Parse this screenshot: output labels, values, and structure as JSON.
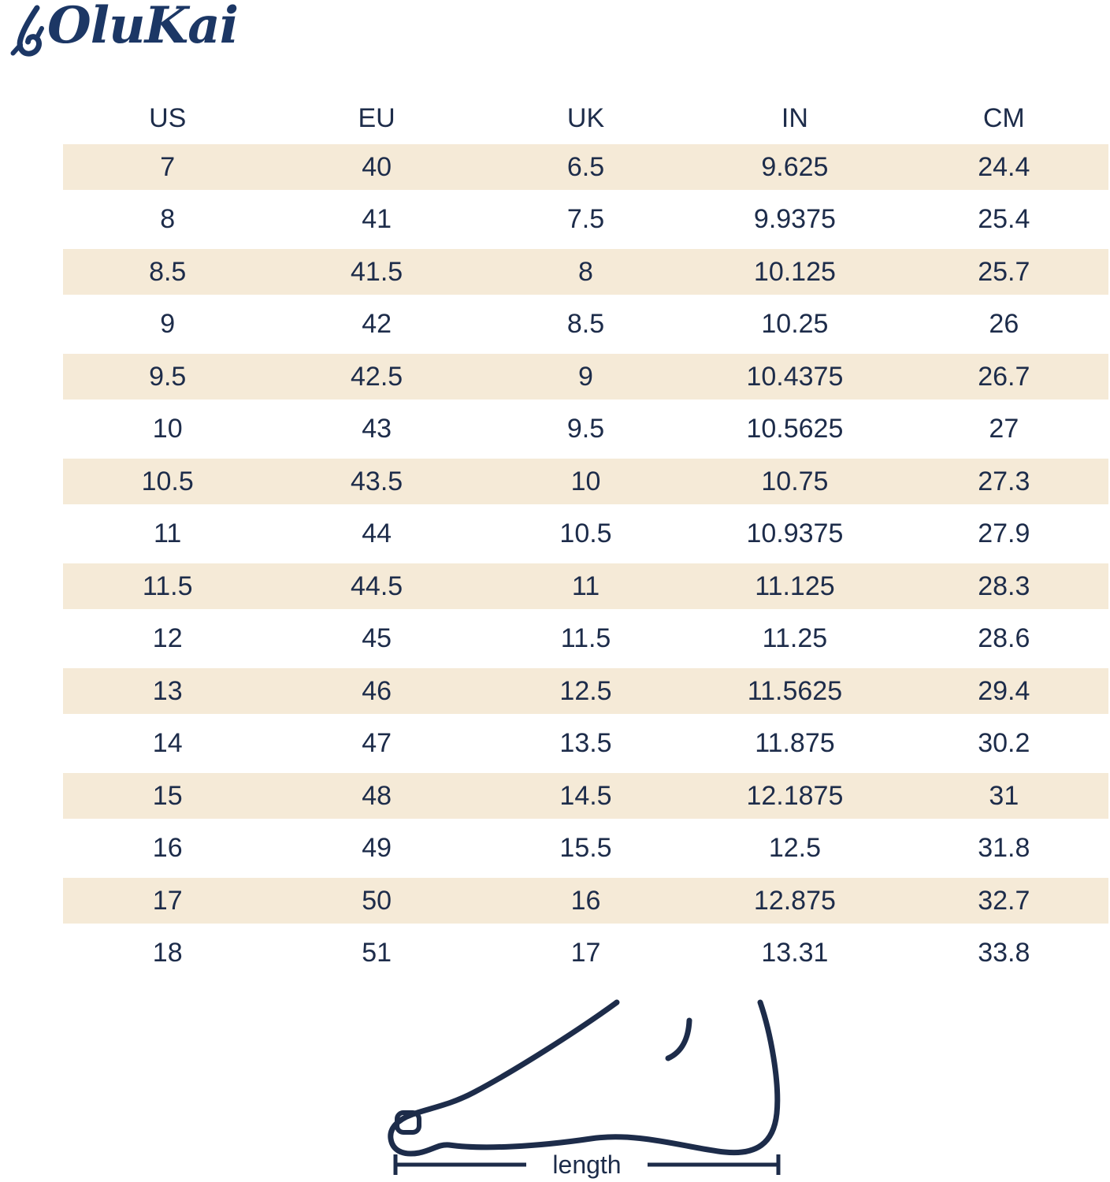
{
  "brand": {
    "name": "OluKai",
    "logo_icon": "fishhook-icon",
    "logo_color": "#1c3765"
  },
  "chart_data": {
    "type": "table",
    "columns": [
      "US",
      "EU",
      "UK",
      "IN",
      "CM"
    ],
    "rows": [
      [
        "7",
        "40",
        "6.5",
        "9.625",
        "24.4"
      ],
      [
        "8",
        "41",
        "7.5",
        "9.9375",
        "25.4"
      ],
      [
        "8.5",
        "41.5",
        "8",
        "10.125",
        "25.7"
      ],
      [
        "9",
        "42",
        "8.5",
        "10.25",
        "26"
      ],
      [
        "9.5",
        "42.5",
        "9",
        "10.4375",
        "26.7"
      ],
      [
        "10",
        "43",
        "9.5",
        "10.5625",
        "27"
      ],
      [
        "10.5",
        "43.5",
        "10",
        "10.75",
        "27.3"
      ],
      [
        "11",
        "44",
        "10.5",
        "10.9375",
        "27.9"
      ],
      [
        "11.5",
        "44.5",
        "11",
        "11.125",
        "28.3"
      ],
      [
        "12",
        "45",
        "11.5",
        "11.25",
        "28.6"
      ],
      [
        "13",
        "46",
        "12.5",
        "11.5625",
        "29.4"
      ],
      [
        "14",
        "47",
        "13.5",
        "11.875",
        "30.2"
      ],
      [
        "15",
        "48",
        "14.5",
        "12.1875",
        "31"
      ],
      [
        "16",
        "49",
        "15.5",
        "12.5",
        "31.8"
      ],
      [
        "17",
        "50",
        "16",
        "12.875",
        "32.7"
      ],
      [
        "18",
        "51",
        "17",
        "13.31",
        "33.8"
      ]
    ],
    "stripe_color": "#f5ead7",
    "text_color": "#1d2c4a",
    "legend_position": "none",
    "grid": false
  },
  "diagram": {
    "icon": "foot-outline-icon",
    "label": "length"
  }
}
